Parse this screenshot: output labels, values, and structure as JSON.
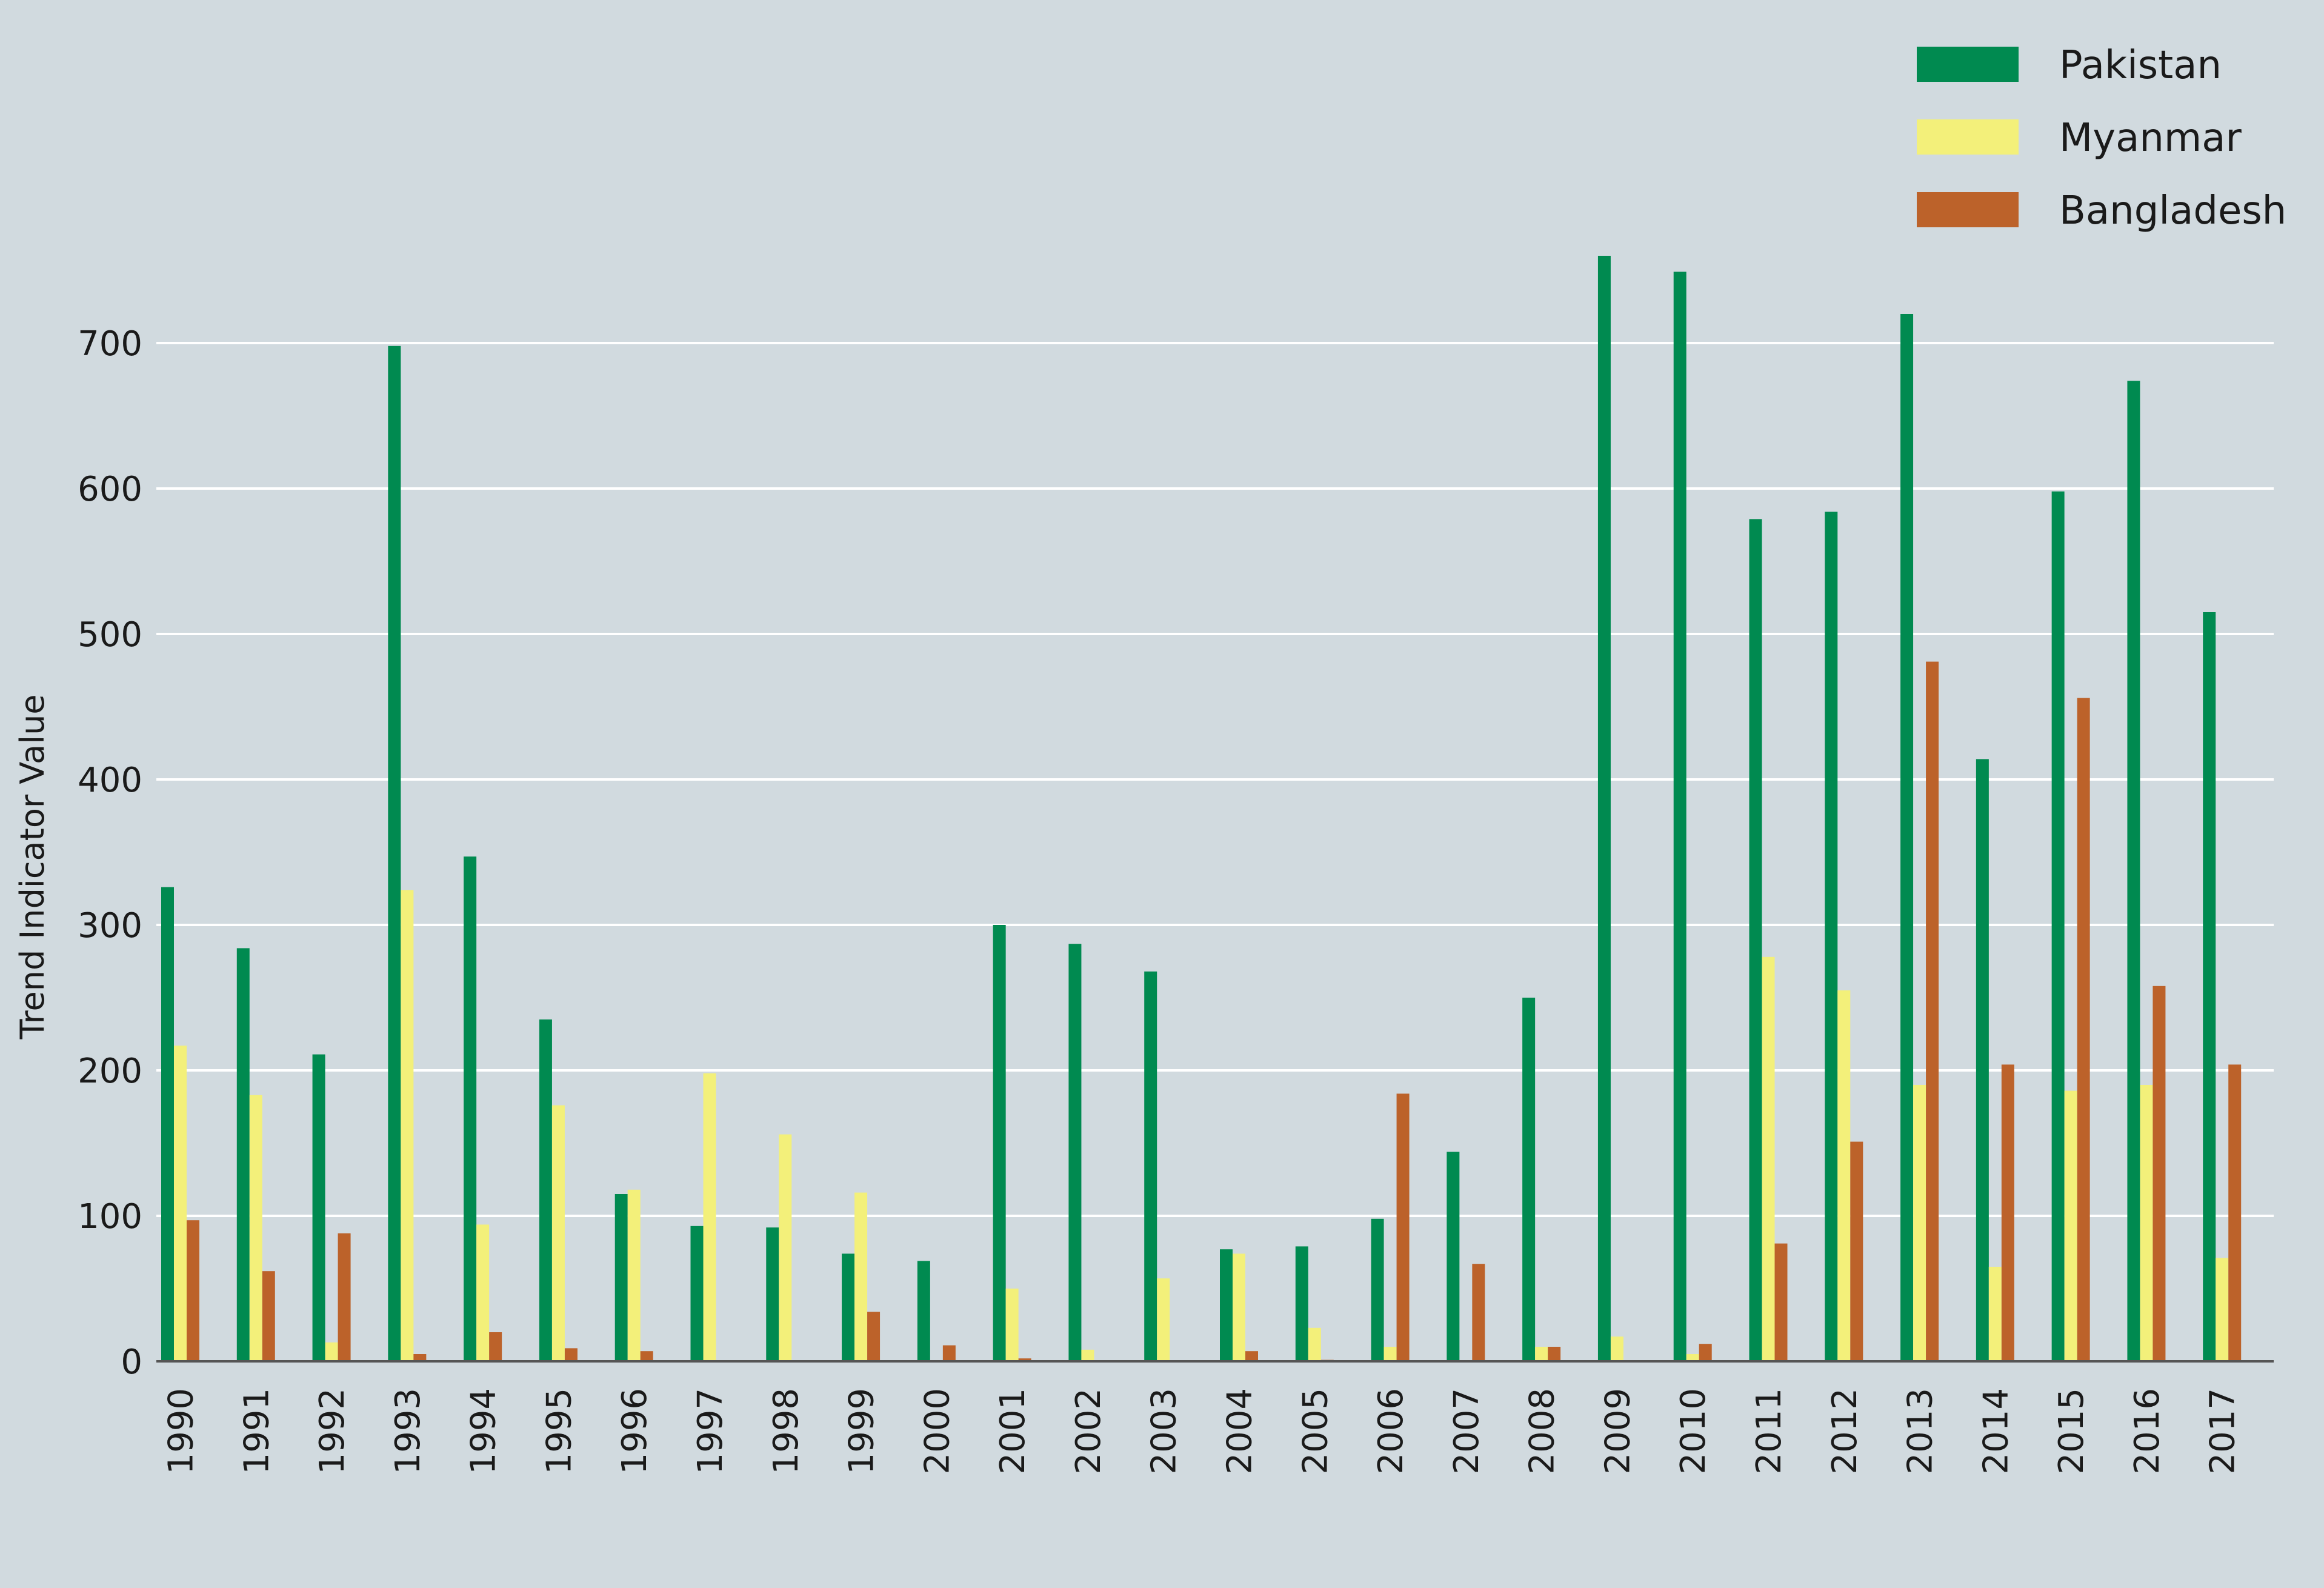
{
  "chart_data": {
    "type": "bar",
    "title": "",
    "xlabel": "",
    "ylabel": "Trend Indicator Value",
    "ylim": [
      0,
      800
    ],
    "yticks": [
      0,
      100,
      200,
      300,
      400,
      500,
      600,
      700
    ],
    "grid": true,
    "legend_position": "top-right",
    "categories": [
      "1990",
      "1991",
      "1992",
      "1993",
      "1994",
      "1995",
      "1996",
      "1997",
      "1998",
      "1999",
      "2000",
      "2001",
      "2002",
      "2003",
      "2004",
      "2005",
      "2006",
      "2007",
      "2008",
      "2009",
      "2010",
      "2011",
      "2012",
      "2013",
      "2014",
      "2015",
      "2016",
      "2017"
    ],
    "series": [
      {
        "name": "Pakistan",
        "color": "#008a50",
        "values": [
          326,
          284,
          211,
          698,
          347,
          235,
          115,
          93,
          92,
          74,
          69,
          300,
          287,
          268,
          77,
          79,
          98,
          144,
          250,
          760,
          749,
          579,
          584,
          720,
          414,
          598,
          674,
          515
        ]
      },
      {
        "name": "Myanmar",
        "color": "#f3f07a",
        "values": [
          217,
          183,
          13,
          324,
          94,
          176,
          118,
          198,
          156,
          116,
          0,
          50,
          8,
          57,
          74,
          23,
          10,
          0,
          10,
          17,
          5,
          278,
          255,
          190,
          65,
          186,
          190,
          71
        ]
      },
      {
        "name": "Bangladesh",
        "color": "#bc622a",
        "values": [
          97,
          62,
          88,
          5,
          20,
          9,
          7,
          0,
          0,
          34,
          11,
          2,
          0,
          0,
          7,
          1,
          184,
          67,
          10,
          0,
          12,
          81,
          151,
          481,
          204,
          456,
          258,
          204
        ]
      }
    ]
  }
}
